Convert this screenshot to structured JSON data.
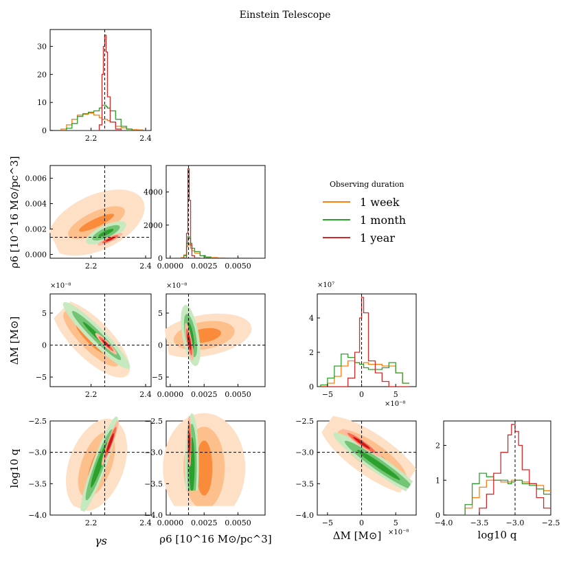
{
  "title": "Einstein Telescope",
  "legend": {
    "title": "Observing duration",
    "entries": [
      {
        "label": "1 week",
        "color": "#ff7f0e"
      },
      {
        "label": "1 month",
        "color": "#2ca02c"
      },
      {
        "label": "1 year",
        "color": "#d62728"
      }
    ]
  },
  "chart_data": {
    "type": "corner",
    "parameters": [
      "γs",
      "ρ6",
      "ΔM",
      "log10 q"
    ],
    "axis_labels": {
      "gamma_s": "γs",
      "rho6": "ρ6 [10^16 M⊙/pc^3]",
      "dM": "ΔM [M⊙]",
      "logq": "log10 q"
    },
    "truths": {
      "gamma_s": 2.25,
      "rho6": 0.00135,
      "dM": 0,
      "logq": -3.0
    },
    "ranges": {
      "gamma_s": [
        2.05,
        2.42
      ],
      "rho6": [
        -0.0003,
        0.007
      ],
      "dM": [
        -6.5e-08,
        8e-08
      ],
      "logq": [
        -4.0,
        -2.5
      ]
    },
    "ticks": {
      "gamma_s": [
        "2.2",
        "2.4"
      ],
      "rho6": [
        "0.0000",
        "0.0025",
        "0.0050"
      ],
      "dM": [
        "−5",
        "0",
        "5"
      ],
      "logq": [
        "−4.0",
        "−3.5",
        "−3.0",
        "−2.5"
      ]
    },
    "offset_label": "×10⁻⁸",
    "diag_offset_label": "×10⁷",
    "hist_ylims": {
      "gamma_s": [
        0,
        36
      ],
      "rho6": [
        0,
        5600
      ],
      "dM": [
        0,
        5.4
      ],
      "logq": [
        0,
        2.7
      ]
    },
    "hist_yticks": {
      "gamma_s": [
        "0",
        "10",
        "20",
        "30"
      ],
      "rho6": [
        "0",
        "2000",
        "4000"
      ],
      "dM": [
        "0",
        "2",
        "4"
      ],
      "logq": [
        "0",
        "1",
        "2"
      ]
    },
    "rho6_yticks": [
      "0.000",
      "0.002",
      "0.004",
      "0.006"
    ],
    "dM_yticks": [
      "−5",
      "0",
      "5"
    ],
    "logq_yticks": [
      "−4.0",
      "−3.5",
      "−3.0",
      "−2.5"
    ],
    "histograms": {
      "gamma_s": {
        "edges": [
          2.05,
          2.07,
          2.09,
          2.11,
          2.13,
          2.15,
          2.17,
          2.19,
          2.21,
          2.23,
          2.24,
          2.245,
          2.25,
          2.255,
          2.26,
          2.27,
          2.29,
          2.31,
          2.33,
          2.35,
          2.37,
          2.39,
          2.41
        ],
        "week": [
          0,
          0,
          0.5,
          2,
          4,
          5.5,
          5.8,
          6.2,
          5.5,
          4.5,
          4,
          4,
          4,
          4,
          3.5,
          3,
          1.5,
          1,
          0.5,
          0.3,
          0.2,
          0,
          0
        ],
        "month": [
          0,
          0,
          0,
          0.8,
          2.5,
          5,
          6,
          6.5,
          7,
          8,
          9,
          9,
          9,
          8.5,
          8,
          7,
          4,
          1.5,
          0.5,
          0,
          0,
          0,
          0
        ],
        "year": [
          0,
          0,
          0,
          0,
          0,
          0,
          0,
          0,
          0,
          2,
          20,
          30,
          34,
          28,
          12,
          3,
          0.5,
          0,
          0,
          0,
          0,
          0,
          0
        ]
      },
      "rho6": {
        "edges": [
          0,
          0.0004,
          0.0008,
          0.001,
          0.0012,
          0.0013,
          0.0014,
          0.0015,
          0.0016,
          0.0018,
          0.0022,
          0.0026,
          0.003,
          0.0035,
          0.004,
          0.0045,
          0.005,
          0.0055,
          0.006,
          0.0065
        ],
        "week": [
          0,
          5,
          40,
          200,
          700,
          900,
          800,
          600,
          450,
          300,
          150,
          80,
          40,
          20,
          10,
          5,
          3,
          2,
          1
        ],
        "month": [
          0,
          0,
          10,
          150,
          900,
          1300,
          1200,
          900,
          600,
          400,
          150,
          50,
          10,
          5,
          0,
          0,
          0,
          0,
          0
        ],
        "year": [
          0,
          0,
          0,
          20,
          1500,
          5400,
          3500,
          800,
          150,
          20,
          0,
          0,
          0,
          0,
          0,
          0,
          0,
          0,
          0
        ]
      },
      "dM": {
        "edges": [
          -6e-08,
          -5e-08,
          -4e-08,
          -3e-08,
          -2e-08,
          -1e-08,
          -3e-09,
          0,
          3e-09,
          1e-08,
          2e-08,
          3e-08,
          4e-08,
          5e-08,
          6e-08,
          7e-08
        ],
        "week": [
          0,
          0.2,
          0.6,
          1.2,
          1.5,
          1.4,
          1.3,
          1.3,
          1.4,
          1.3,
          1.3,
          1.2,
          1.2,
          0.8,
          0.2
        ],
        "month": [
          0.1,
          0.5,
          1.2,
          1.9,
          1.7,
          1.4,
          1.3,
          1.3,
          1.1,
          1.0,
          1.0,
          1.1,
          1.4,
          0.8,
          0.2
        ],
        "year": [
          0,
          0,
          0,
          0,
          0.5,
          2.0,
          4.0,
          5.2,
          4.3,
          1.5,
          0.8,
          0.3,
          0,
          0,
          0
        ]
      },
      "logq": {
        "edges": [
          -4.0,
          -3.9,
          -3.8,
          -3.7,
          -3.6,
          -3.5,
          -3.4,
          -3.3,
          -3.2,
          -3.1,
          -3.05,
          -3.0,
          -2.95,
          -2.9,
          -2.8,
          -2.7,
          -2.6,
          -2.5
        ],
        "week": [
          0,
          0,
          0,
          0.2,
          0.5,
          0.8,
          1.0,
          1.0,
          0.95,
          0.95,
          1.0,
          1.0,
          1.0,
          0.95,
          0.9,
          0.85,
          0.7
        ],
        "month": [
          0,
          0,
          0,
          0.3,
          0.9,
          1.2,
          1.1,
          1.0,
          1.0,
          0.9,
          0.95,
          1.0,
          1.0,
          0.9,
          0.85,
          0.75,
          0.6
        ],
        "year": [
          0,
          0,
          0,
          0,
          0,
          0.2,
          0.6,
          1.2,
          1.8,
          2.3,
          2.6,
          2.4,
          2.0,
          1.3,
          0.9,
          0.5,
          0.2
        ]
      }
    }
  }
}
